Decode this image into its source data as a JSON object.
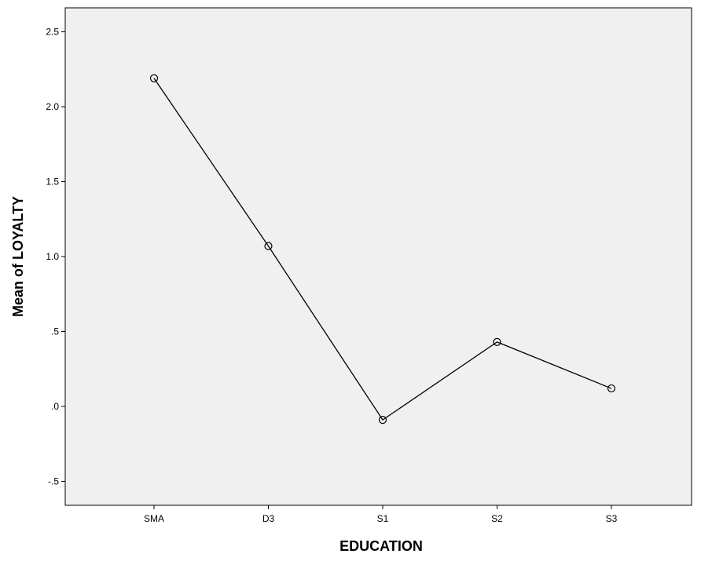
{
  "chart_data": {
    "type": "line",
    "title": "",
    "xlabel": "EDUCATION",
    "ylabel": "Mean of LOYALTY",
    "categories": [
      "SMA",
      "D3",
      "S1",
      "S2",
      "S3"
    ],
    "series": [
      {
        "values": [
          2.19,
          1.07,
          -0.09,
          0.43,
          0.12
        ]
      }
    ],
    "ylim": [
      -0.66,
      2.66
    ],
    "yticks": [
      {
        "value": 2.5,
        "label": "2.5"
      },
      {
        "value": 2.0,
        "label": "2.0"
      },
      {
        "value": 1.5,
        "label": "1.5"
      },
      {
        "value": 1.0,
        "label": "1.0"
      },
      {
        "value": 0.5,
        "label": ".5"
      },
      {
        "value": 0.0,
        "label": ".0"
      },
      {
        "value": -0.5,
        "label": "-.5"
      }
    ],
    "grid": false,
    "marker": "open-circle",
    "colors": {
      "plot_background": "#f0f0f0",
      "line": "#000000",
      "axis": "#000000"
    }
  }
}
